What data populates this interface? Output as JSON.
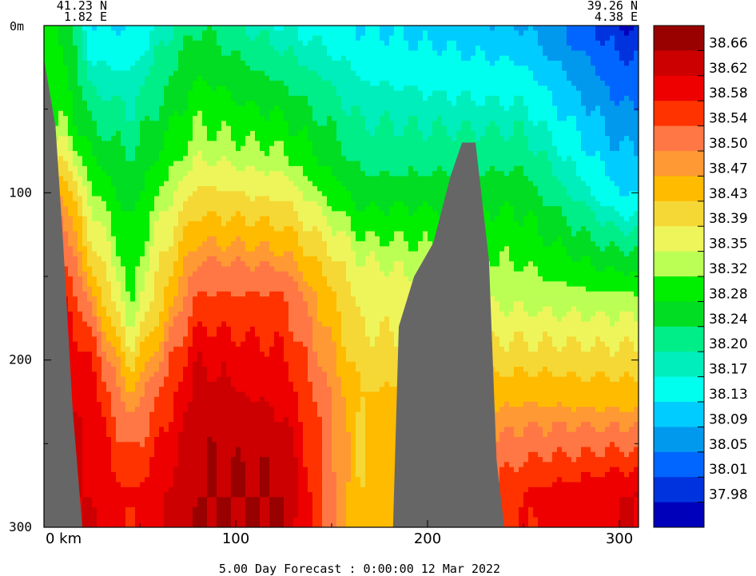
{
  "chart_data": {
    "type": "heatmap",
    "title": "",
    "forecast_label": "5.00 Day Forecast :  0:00:00  12 Mar 2022",
    "start_point": {
      "lat": "41.23 N",
      "lon": "1.82 E"
    },
    "end_point": {
      "lat": "39.26 N",
      "lon": "4.38 E"
    },
    "xlabel": "km",
    "ylabel": "m",
    "xlim": [
      0,
      310
    ],
    "ylim": [
      300,
      0
    ],
    "x_ticks": [
      0,
      100,
      200,
      300
    ],
    "x_tick_labels": [
      "0 km",
      "100",
      "200",
      "300"
    ],
    "y_ticks": [
      0,
      100,
      200,
      300
    ],
    "y_tick_labels": [
      "0m",
      "100",
      "200",
      "300"
    ],
    "colorbar_levels": [
      "38.66",
      "38.62",
      "38.58",
      "38.54",
      "38.50",
      "38.47",
      "38.43",
      "38.39",
      "38.35",
      "38.32",
      "38.28",
      "38.24",
      "38.20",
      "38.17",
      "38.13",
      "38.09",
      "38.05",
      "38.01",
      "37.98"
    ],
    "colorbar_colors": [
      "#990000",
      "#cc0000",
      "#ee0000",
      "#ff3300",
      "#ff7744",
      "#ff9933",
      "#ffbb00",
      "#f5d835",
      "#eef55a",
      "#bbff55",
      "#00ee00",
      "#00dd22",
      "#00ee88",
      "#00eebb",
      "#00ffee",
      "#00ccff",
      "#0099ee",
      "#0066ff",
      "#0033dd",
      "#0000bb"
    ],
    "salinity_profiles": [
      {
        "x": 10,
        "isolines": [
          {
            "depth": 0,
            "value": 38.28
          },
          {
            "depth": 60,
            "value": 38.32
          },
          {
            "depth": 110,
            "value": 38.5
          },
          {
            "depth": 180,
            "value": 38.62
          }
        ]
      },
      {
        "x": 25,
        "isolines": [
          {
            "depth": 0,
            "value": 38.13
          },
          {
            "depth": 60,
            "value": 38.24
          },
          {
            "depth": 130,
            "value": 38.39
          },
          {
            "depth": 200,
            "value": 38.58
          },
          {
            "depth": 250,
            "value": 38.62
          }
        ]
      },
      {
        "x": 45,
        "isolines": [
          {
            "depth": 0,
            "value": 38.13
          },
          {
            "depth": 80,
            "value": 38.24
          },
          {
            "depth": 170,
            "value": 38.32
          },
          {
            "depth": 220,
            "value": 38.47
          },
          {
            "depth": 280,
            "value": 38.58
          }
        ]
      },
      {
        "x": 80,
        "isolines": [
          {
            "depth": 0,
            "value": 38.24
          },
          {
            "depth": 80,
            "value": 38.35
          },
          {
            "depth": 140,
            "value": 38.5
          },
          {
            "depth": 200,
            "value": 38.62
          },
          {
            "depth": 260,
            "value": 38.66
          }
        ]
      },
      {
        "x": 125,
        "isolines": [
          {
            "depth": 0,
            "value": 38.17
          },
          {
            "depth": 90,
            "value": 38.35
          },
          {
            "depth": 160,
            "value": 38.54
          },
          {
            "depth": 230,
            "value": 38.62
          },
          {
            "depth": 270,
            "value": 38.66
          }
        ]
      },
      {
        "x": 165,
        "isolines": [
          {
            "depth": 0,
            "value": 38.13
          },
          {
            "depth": 90,
            "value": 38.24
          },
          {
            "depth": 140,
            "value": 38.35
          },
          {
            "depth": 220,
            "value": 38.43
          }
        ]
      },
      {
        "x": 250,
        "isolines": [
          {
            "depth": 0,
            "value": 38.09
          },
          {
            "depth": 110,
            "value": 38.28
          },
          {
            "depth": 170,
            "value": 38.35
          },
          {
            "depth": 240,
            "value": 38.5
          },
          {
            "depth": 280,
            "value": 38.58
          }
        ]
      },
      {
        "x": 300,
        "isolines": [
          {
            "depth": 0,
            "value": 37.98
          },
          {
            "depth": 100,
            "value": 38.13
          },
          {
            "depth": 160,
            "value": 38.32
          },
          {
            "depth": 230,
            "value": 38.47
          },
          {
            "depth": 280,
            "value": 38.62
          }
        ]
      }
    ],
    "bathymetry": [
      {
        "x": 0,
        "depth": 20
      },
      {
        "x": 6,
        "depth": 60
      },
      {
        "x": 10,
        "depth": 130
      },
      {
        "x": 15,
        "depth": 230
      },
      {
        "x": 20,
        "depth": 300
      },
      {
        "x": 182,
        "depth": 300
      },
      {
        "x": 185,
        "depth": 180
      },
      {
        "x": 193,
        "depth": 150
      },
      {
        "x": 203,
        "depth": 130
      },
      {
        "x": 212,
        "depth": 90
      },
      {
        "x": 218,
        "depth": 70
      },
      {
        "x": 225,
        "depth": 70
      },
      {
        "x": 232,
        "depth": 140
      },
      {
        "x": 236,
        "depth": 260
      },
      {
        "x": 240,
        "depth": 300
      }
    ],
    "grid": false,
    "legend": "right"
  }
}
